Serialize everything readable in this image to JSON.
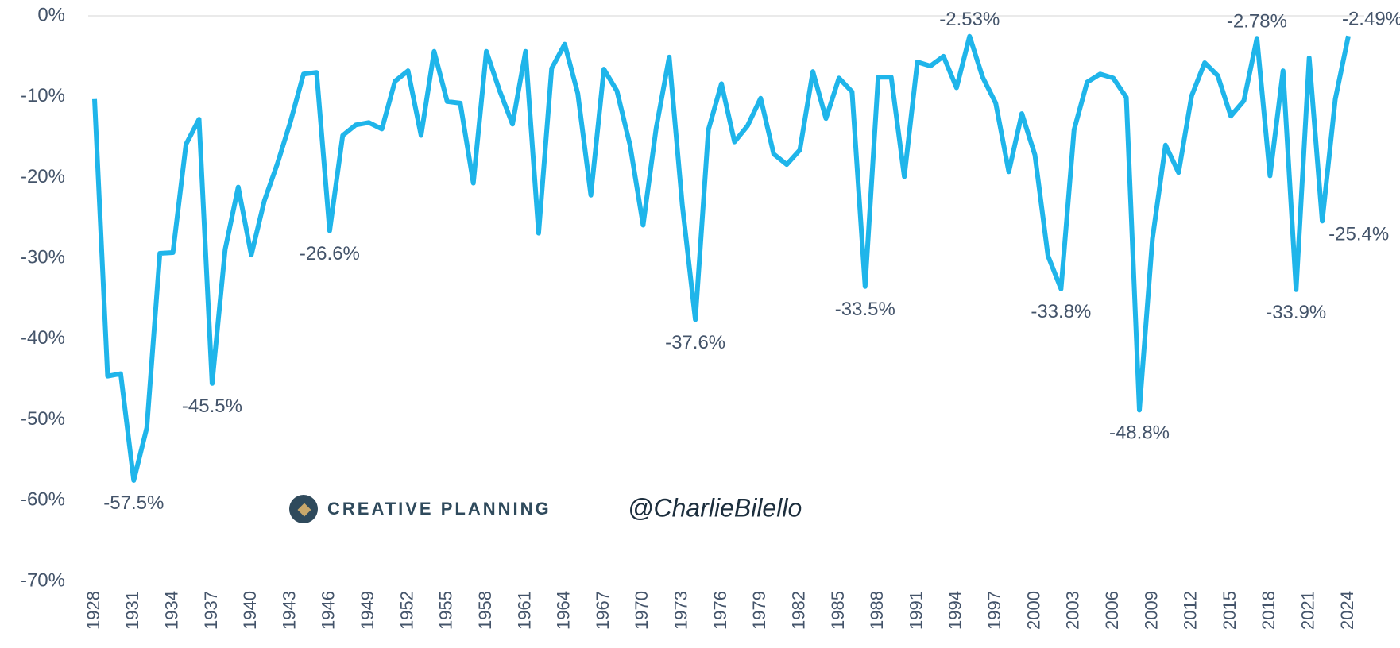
{
  "chart_data": {
    "type": "line",
    "x": [
      1928,
      1929,
      1930,
      1931,
      1932,
      1933,
      1934,
      1935,
      1936,
      1937,
      1938,
      1939,
      1940,
      1941,
      1942,
      1943,
      1944,
      1945,
      1946,
      1947,
      1948,
      1949,
      1950,
      1951,
      1952,
      1953,
      1954,
      1955,
      1956,
      1957,
      1958,
      1959,
      1960,
      1961,
      1962,
      1963,
      1964,
      1965,
      1966,
      1967,
      1968,
      1969,
      1970,
      1971,
      1972,
      1973,
      1974,
      1975,
      1976,
      1977,
      1978,
      1979,
      1980,
      1981,
      1982,
      1983,
      1984,
      1985,
      1986,
      1987,
      1988,
      1989,
      1990,
      1991,
      1992,
      1993,
      1994,
      1995,
      1996,
      1997,
      1998,
      1999,
      2000,
      2001,
      2002,
      2003,
      2004,
      2005,
      2006,
      2007,
      2008,
      2009,
      2010,
      2011,
      2012,
      2013,
      2014,
      2015,
      2016,
      2017,
      2018,
      2019,
      2020,
      2021,
      2022,
      2023,
      2024
    ],
    "series": [
      {
        "color": "#1fb5ea",
        "values": [
          -10.3,
          -44.6,
          -44.3,
          -57.5,
          -51.0,
          -29.4,
          -29.3,
          -15.9,
          -12.8,
          -45.5,
          -28.9,
          -21.2,
          -29.6,
          -22.9,
          -18.3,
          -13.1,
          -7.2,
          -7.0,
          -26.6,
          -14.8,
          -13.5,
          -13.2,
          -14.0,
          -8.1,
          -6.8,
          -14.8,
          -4.4,
          -10.6,
          -10.8,
          -20.7,
          -4.4,
          -9.2,
          -13.4,
          -4.4,
          -26.9,
          -6.5,
          -3.5,
          -9.6,
          -22.2,
          -6.6,
          -9.3,
          -16.0,
          -25.9,
          -13.9,
          -5.1,
          -23.4,
          -37.6,
          -14.1,
          -8.4,
          -15.6,
          -13.6,
          -10.2,
          -17.1,
          -18.4,
          -16.6,
          -6.9,
          -12.7,
          -7.7,
          -9.4,
          -33.5,
          -7.6,
          -7.6,
          -19.9,
          -5.7,
          -6.2,
          -5.0,
          -8.9,
          -2.53,
          -7.6,
          -10.8,
          -19.3,
          -12.1,
          -17.2,
          -29.7,
          -33.8,
          -14.1,
          -8.2,
          -7.2,
          -7.7,
          -10.1,
          -48.8,
          -27.6,
          -16.0,
          -19.4,
          -9.9,
          -5.8,
          -7.4,
          -12.4,
          -10.5,
          -2.78,
          -19.8,
          -6.8,
          -33.9,
          -5.2,
          -25.4,
          -10.3,
          -2.49
        ],
        "value_labels": [
          null,
          null,
          null,
          "-57.5%",
          null,
          null,
          null,
          null,
          null,
          "-45.5%",
          null,
          null,
          null,
          null,
          null,
          null,
          null,
          null,
          "-26.6%",
          null,
          null,
          null,
          null,
          null,
          null,
          null,
          null,
          null,
          null,
          null,
          null,
          null,
          null,
          null,
          null,
          null,
          null,
          null,
          null,
          null,
          null,
          null,
          null,
          null,
          null,
          null,
          "-37.6%",
          null,
          null,
          null,
          null,
          null,
          null,
          null,
          null,
          null,
          null,
          null,
          null,
          "-33.5%",
          null,
          null,
          null,
          null,
          null,
          null,
          null,
          "-2.53%",
          null,
          null,
          null,
          null,
          null,
          null,
          "-33.8%",
          null,
          null,
          null,
          null,
          null,
          "-48.8%",
          null,
          null,
          null,
          null,
          null,
          null,
          null,
          null,
          "-2.78%",
          null,
          null,
          "-33.9%",
          null,
          "-25.4%",
          null,
          "-2.49%"
        ]
      }
    ],
    "xlim": [
      1928,
      2024
    ],
    "xticks": [
      1928,
      1931,
      1934,
      1937,
      1940,
      1943,
      1946,
      1949,
      1952,
      1955,
      1958,
      1961,
      1964,
      1967,
      1970,
      1973,
      1976,
      1979,
      1982,
      1985,
      1988,
      1991,
      1994,
      1997,
      2000,
      2003,
      2006,
      2009,
      2012,
      2015,
      2018,
      2021,
      2024
    ],
    "ylim": [
      -70,
      0
    ],
    "yticks": [
      {
        "value": 0,
        "label": "0%"
      },
      {
        "value": -10,
        "label": "-10%"
      },
      {
        "value": -20,
        "label": "-20%"
      },
      {
        "value": -30,
        "label": "-30%"
      },
      {
        "value": -40,
        "label": "-40%"
      },
      {
        "value": -50,
        "label": "-50%"
      },
      {
        "value": -60,
        "label": "-60%"
      },
      {
        "value": -70,
        "label": "-70%"
      }
    ],
    "grid": false,
    "watermark": {
      "brand": "CREATIVE PLANNING",
      "handle": "@CharlieBilello"
    }
  }
}
